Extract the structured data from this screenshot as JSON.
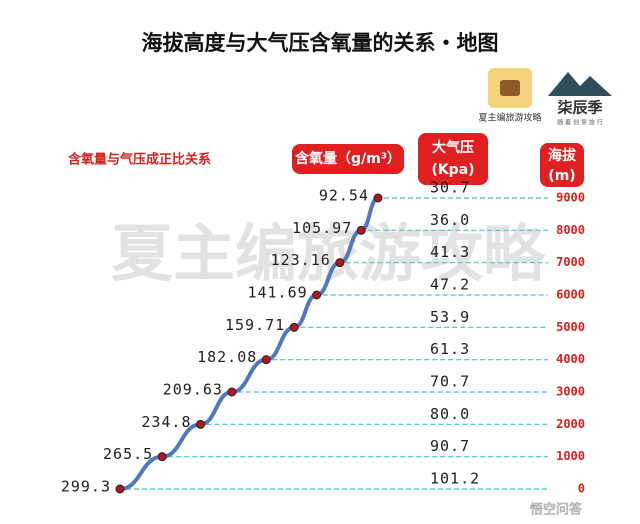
{
  "chart_data": {
    "type": "line",
    "title": "海拔高度与大气压含氧量的关系・地图",
    "annotation": "含氧量与气压成正比关系",
    "watermark": "夏主编旅游攻略",
    "logos": {
      "left": "夏主编旅游攻略",
      "right": "柒辰季",
      "right_sub": "随 着 创 意 旅 行",
      "corner": "悟空问答"
    },
    "y_label": {
      "text": "海拔",
      "unit": "(m)"
    },
    "ylim": [
      0,
      9000
    ],
    "yticks": [
      0,
      1000,
      2000,
      3000,
      4000,
      5000,
      6000,
      7000,
      8000,
      9000
    ],
    "series": [
      {
        "name": "含氧量（g/m³）",
        "color": "#4f78c4",
        "values": [
          299.3,
          265.5,
          234.8,
          209.63,
          182.08,
          159.71,
          141.69,
          123.16,
          105.97,
          92.54
        ]
      },
      {
        "name": "大气压",
        "unit": "(Kpa)",
        "color": "#222222",
        "values": [
          101.2,
          90.7,
          80.0,
          70.7,
          61.3,
          53.9,
          47.2,
          41.3,
          36.0,
          30.7
        ],
        "value_labels": [
          "101.2",
          "90.7",
          "80.0",
          "70.7",
          "61.3",
          "53.9",
          "47.2",
          "41.3",
          "36.0",
          "30.7"
        ]
      }
    ],
    "grid": true
  }
}
